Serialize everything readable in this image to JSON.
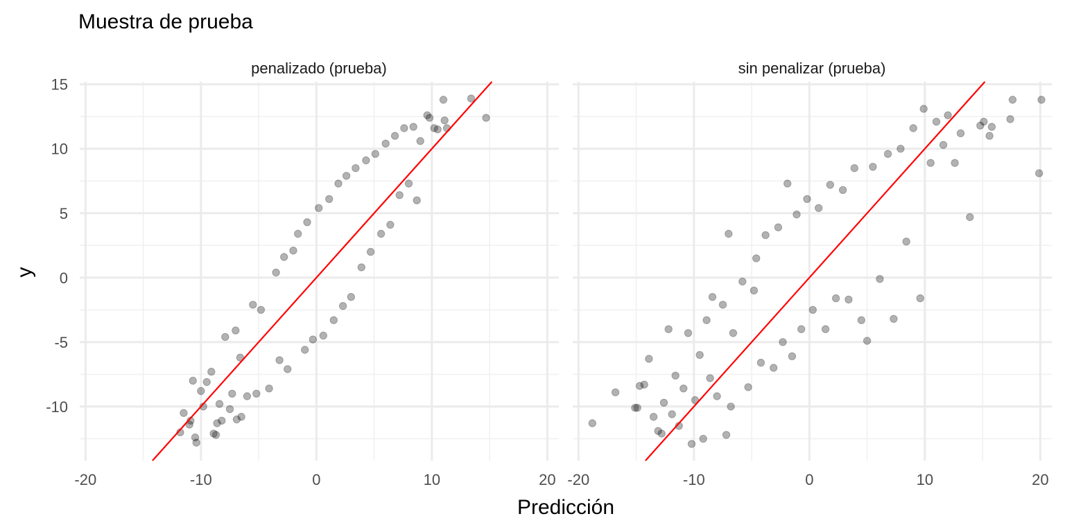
{
  "chart_data": {
    "type": "scatter",
    "title": "Muestra de prueba",
    "xlabel": "Predicción",
    "ylabel": "y",
    "xlim": [
      -20.5,
      21.0
    ],
    "ylim": [
      -14.2,
      15.2
    ],
    "x_ticks": [
      -20,
      -10,
      0,
      10,
      20
    ],
    "x_tick_labels": [
      "-20",
      "-10",
      "0",
      "10",
      "20"
    ],
    "y_ticks": [
      -10,
      -5,
      0,
      5,
      10,
      15
    ],
    "y_tick_labels": [
      "-10",
      "-5",
      "0",
      "5",
      "10",
      "15"
    ],
    "grid": true,
    "point_color": "#000000",
    "point_opacity": 0.3,
    "reference_line": {
      "intercept": 0,
      "slope": 1,
      "color": "#ff0000"
    },
    "panels": [
      {
        "name": "penalizado (prueba)",
        "points": [
          [
            -11.8,
            -12.0
          ],
          [
            -11.5,
            -10.5
          ],
          [
            -11.0,
            -11.4
          ],
          [
            -10.9,
            -11.1
          ],
          [
            -10.7,
            -8.0
          ],
          [
            -10.5,
            -12.4
          ],
          [
            -10.4,
            -12.8
          ],
          [
            -10.0,
            -8.8
          ],
          [
            -9.8,
            -10.0
          ],
          [
            -9.5,
            -8.1
          ],
          [
            -9.1,
            -7.3
          ],
          [
            -8.9,
            -12.1
          ],
          [
            -8.7,
            -12.2
          ],
          [
            -8.6,
            -11.3
          ],
          [
            -8.4,
            -9.8
          ],
          [
            -8.2,
            -11.1
          ],
          [
            -7.9,
            -4.6
          ],
          [
            -7.5,
            -10.2
          ],
          [
            -7.3,
            -9.0
          ],
          [
            -7.0,
            -4.1
          ],
          [
            -6.9,
            -11.0
          ],
          [
            -6.6,
            -6.2
          ],
          [
            -6.5,
            -10.8
          ],
          [
            -6.0,
            -9.2
          ],
          [
            -5.5,
            -2.1
          ],
          [
            -5.2,
            -9.0
          ],
          [
            -4.8,
            -2.5
          ],
          [
            -4.1,
            -8.6
          ],
          [
            -3.5,
            0.4
          ],
          [
            -3.2,
            -6.4
          ],
          [
            -2.8,
            1.6
          ],
          [
            -2.5,
            -7.1
          ],
          [
            -2.0,
            2.1
          ],
          [
            -1.6,
            3.4
          ],
          [
            -1.0,
            -5.6
          ],
          [
            -0.8,
            4.3
          ],
          [
            -0.3,
            -4.8
          ],
          [
            0.2,
            5.4
          ],
          [
            0.6,
            -4.5
          ],
          [
            1.1,
            6.1
          ],
          [
            1.5,
            -3.3
          ],
          [
            1.9,
            7.3
          ],
          [
            2.3,
            -2.2
          ],
          [
            2.6,
            7.9
          ],
          [
            3.0,
            -1.5
          ],
          [
            3.4,
            8.5
          ],
          [
            3.9,
            0.8
          ],
          [
            4.3,
            9.1
          ],
          [
            4.7,
            2.0
          ],
          [
            5.1,
            9.6
          ],
          [
            5.6,
            3.4
          ],
          [
            6.0,
            10.4
          ],
          [
            6.4,
            4.1
          ],
          [
            6.8,
            11.0
          ],
          [
            7.2,
            6.4
          ],
          [
            7.6,
            11.6
          ],
          [
            8.0,
            7.3
          ],
          [
            8.4,
            11.7
          ],
          [
            8.7,
            6.0
          ],
          [
            9.0,
            10.6
          ],
          [
            9.6,
            12.6
          ],
          [
            9.8,
            12.4
          ],
          [
            10.2,
            11.6
          ],
          [
            10.5,
            11.5
          ],
          [
            11.0,
            13.8
          ],
          [
            11.1,
            12.2
          ],
          [
            11.3,
            11.6
          ],
          [
            13.4,
            13.9
          ],
          [
            14.7,
            12.4
          ]
        ]
      },
      {
        "name": "sin penalizar (prueba)",
        "points": [
          [
            -18.8,
            -11.3
          ],
          [
            -16.8,
            -8.9
          ],
          [
            -15.1,
            -10.1
          ],
          [
            -14.9,
            -10.1
          ],
          [
            -14.7,
            -8.4
          ],
          [
            -14.3,
            -8.3
          ],
          [
            -13.9,
            -6.3
          ],
          [
            -13.5,
            -10.8
          ],
          [
            -13.1,
            -11.9
          ],
          [
            -12.8,
            -12.1
          ],
          [
            -12.6,
            -9.7
          ],
          [
            -12.2,
            -4.0
          ],
          [
            -11.9,
            -10.6
          ],
          [
            -11.6,
            -7.6
          ],
          [
            -11.3,
            -11.5
          ],
          [
            -10.9,
            -8.6
          ],
          [
            -10.5,
            -4.3
          ],
          [
            -10.2,
            -12.9
          ],
          [
            -9.9,
            -9.5
          ],
          [
            -9.5,
            -6.0
          ],
          [
            -9.2,
            -12.5
          ],
          [
            -8.9,
            -3.3
          ],
          [
            -8.6,
            -7.8
          ],
          [
            -8.4,
            -1.5
          ],
          [
            -8.0,
            -9.2
          ],
          [
            -7.5,
            -2.1
          ],
          [
            -7.2,
            -12.2
          ],
          [
            -7.0,
            3.4
          ],
          [
            -6.8,
            -10.0
          ],
          [
            -6.6,
            -4.3
          ],
          [
            -5.8,
            -0.3
          ],
          [
            -5.3,
            -8.5
          ],
          [
            -4.8,
            -1.0
          ],
          [
            -4.6,
            1.5
          ],
          [
            -4.2,
            -6.6
          ],
          [
            -3.8,
            3.3
          ],
          [
            -3.1,
            -7.0
          ],
          [
            -2.7,
            3.9
          ],
          [
            -2.3,
            -5.0
          ],
          [
            -1.9,
            7.3
          ],
          [
            -1.5,
            -6.1
          ],
          [
            -1.1,
            4.9
          ],
          [
            -0.7,
            -4.0
          ],
          [
            -0.2,
            6.1
          ],
          [
            0.3,
            -2.5
          ],
          [
            0.8,
            5.4
          ],
          [
            1.4,
            -4.0
          ],
          [
            1.8,
            7.2
          ],
          [
            2.3,
            -1.6
          ],
          [
            2.9,
            6.8
          ],
          [
            3.4,
            -1.7
          ],
          [
            3.9,
            8.5
          ],
          [
            4.5,
            -3.3
          ],
          [
            5.0,
            -4.9
          ],
          [
            5.5,
            8.6
          ],
          [
            6.1,
            -0.1
          ],
          [
            6.8,
            9.6
          ],
          [
            7.3,
            -3.2
          ],
          [
            7.9,
            10.0
          ],
          [
            8.4,
            2.8
          ],
          [
            9.0,
            11.6
          ],
          [
            9.6,
            -1.6
          ],
          [
            9.9,
            13.1
          ],
          [
            10.5,
            8.9
          ],
          [
            11.0,
            12.1
          ],
          [
            11.6,
            10.3
          ],
          [
            12.0,
            12.6
          ],
          [
            12.6,
            8.9
          ],
          [
            13.1,
            11.2
          ],
          [
            13.9,
            4.7
          ],
          [
            14.8,
            11.8
          ],
          [
            15.1,
            12.1
          ],
          [
            15.6,
            11.0
          ],
          [
            15.8,
            11.7
          ],
          [
            17.4,
            12.3
          ],
          [
            17.6,
            13.8
          ],
          [
            19.9,
            8.1
          ],
          [
            20.1,
            13.8
          ]
        ]
      }
    ]
  }
}
